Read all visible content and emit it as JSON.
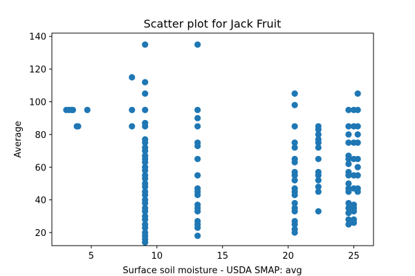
{
  "chart_data": {
    "type": "scatter",
    "title": "Scatter plot for Jack Fruit",
    "xlabel": "Surface soil moisture - USDA SMAP: avg",
    "ylabel": "Average",
    "xlim": [
      2.0,
      26.5
    ],
    "ylim": [
      12,
      142
    ],
    "xticks": [
      5,
      10,
      15,
      20,
      25
    ],
    "yticks": [
      20,
      40,
      60,
      80,
      100,
      120,
      140
    ],
    "grid": false,
    "marker_color": "#1f77b4",
    "series": [
      {
        "points": [
          [
            3.1,
            95
          ],
          [
            3.3,
            95
          ],
          [
            3.5,
            95
          ],
          [
            3.6,
            95
          ],
          [
            3.9,
            85
          ],
          [
            4.0,
            85
          ],
          [
            4.7,
            95
          ],
          [
            8.1,
            115
          ],
          [
            8.1,
            95
          ],
          [
            8.1,
            85
          ],
          [
            9.1,
            135
          ],
          [
            9.1,
            112
          ],
          [
            9.1,
            105
          ],
          [
            9.1,
            95
          ],
          [
            9.1,
            87
          ],
          [
            9.1,
            85
          ],
          [
            9.1,
            77
          ],
          [
            9.1,
            75
          ],
          [
            9.1,
            72
          ],
          [
            9.1,
            70
          ],
          [
            9.1,
            67
          ],
          [
            9.1,
            65
          ],
          [
            9.1,
            63
          ],
          [
            9.1,
            60
          ],
          [
            9.1,
            58
          ],
          [
            9.1,
            55
          ],
          [
            9.1,
            53
          ],
          [
            9.1,
            50
          ],
          [
            9.1,
            48
          ],
          [
            9.1,
            45
          ],
          [
            9.1,
            43
          ],
          [
            9.1,
            40
          ],
          [
            9.1,
            38
          ],
          [
            9.1,
            35
          ],
          [
            9.1,
            33
          ],
          [
            9.1,
            30
          ],
          [
            9.1,
            28
          ],
          [
            9.1,
            25
          ],
          [
            9.1,
            23
          ],
          [
            9.1,
            20
          ],
          [
            9.1,
            18
          ],
          [
            9.1,
            16
          ],
          [
            9.1,
            14
          ],
          [
            13.1,
            135
          ],
          [
            13.1,
            95
          ],
          [
            13.1,
            90
          ],
          [
            13.1,
            85
          ],
          [
            13.1,
            75
          ],
          [
            13.1,
            73
          ],
          [
            13.1,
            65
          ],
          [
            13.1,
            55
          ],
          [
            13.1,
            47
          ],
          [
            13.1,
            45
          ],
          [
            13.1,
            43
          ],
          [
            13.1,
            37
          ],
          [
            13.1,
            35
          ],
          [
            13.1,
            33
          ],
          [
            13.1,
            27
          ],
          [
            13.1,
            25
          ],
          [
            13.1,
            23
          ],
          [
            13.1,
            18
          ],
          [
            20.5,
            105
          ],
          [
            20.5,
            98
          ],
          [
            20.5,
            85
          ],
          [
            20.5,
            75
          ],
          [
            20.5,
            72
          ],
          [
            20.5,
            65
          ],
          [
            20.5,
            63
          ],
          [
            20.5,
            57
          ],
          [
            20.5,
            55
          ],
          [
            20.5,
            52
          ],
          [
            20.5,
            47
          ],
          [
            20.5,
            45
          ],
          [
            20.5,
            43
          ],
          [
            20.5,
            38
          ],
          [
            20.5,
            35
          ],
          [
            20.5,
            33
          ],
          [
            20.5,
            27
          ],
          [
            20.5,
            25
          ],
          [
            20.5,
            22
          ],
          [
            20.5,
            20
          ],
          [
            22.3,
            85
          ],
          [
            22.3,
            83
          ],
          [
            22.3,
            80
          ],
          [
            22.3,
            77
          ],
          [
            22.3,
            75
          ],
          [
            22.3,
            72
          ],
          [
            22.3,
            65
          ],
          [
            22.3,
            57
          ],
          [
            22.3,
            55
          ],
          [
            22.3,
            52
          ],
          [
            22.3,
            48
          ],
          [
            22.3,
            45
          ],
          [
            22.3,
            33
          ],
          [
            24.6,
            95
          ],
          [
            24.6,
            85
          ],
          [
            24.6,
            80
          ],
          [
            24.6,
            75
          ],
          [
            24.6,
            67
          ],
          [
            24.6,
            65
          ],
          [
            24.6,
            62
          ],
          [
            24.6,
            57
          ],
          [
            24.6,
            55
          ],
          [
            24.6,
            50
          ],
          [
            24.6,
            47
          ],
          [
            24.6,
            45
          ],
          [
            24.6,
            38
          ],
          [
            24.6,
            35
          ],
          [
            24.6,
            32
          ],
          [
            24.6,
            28
          ],
          [
            24.6,
            25
          ],
          [
            25.0,
            95
          ],
          [
            25.0,
            85
          ],
          [
            25.0,
            75
          ],
          [
            25.0,
            65
          ],
          [
            25.0,
            55
          ],
          [
            25.0,
            47
          ],
          [
            25.0,
            37
          ],
          [
            25.0,
            35
          ],
          [
            25.0,
            33
          ],
          [
            25.0,
            28
          ],
          [
            25.0,
            26
          ],
          [
            25.3,
            105
          ],
          [
            25.3,
            95
          ],
          [
            25.3,
            85
          ],
          [
            25.3,
            80
          ],
          [
            25.3,
            75
          ],
          [
            25.3,
            65
          ],
          [
            25.3,
            60
          ],
          [
            25.3,
            55
          ],
          [
            25.3,
            47
          ],
          [
            25.3,
            45
          ]
        ]
      }
    ]
  }
}
